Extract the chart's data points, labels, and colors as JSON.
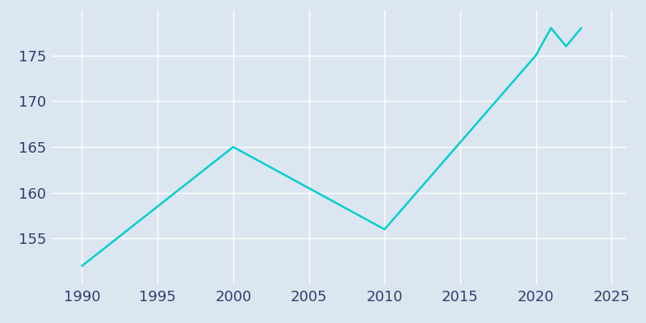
{
  "years": [
    1990,
    2000,
    2010,
    2020,
    2021,
    2022,
    2023
  ],
  "population": [
    152,
    165,
    156,
    175,
    178,
    176,
    178
  ],
  "line_color": "#00CED1",
  "background_color": "#dce6f0",
  "plot_background_color": "#dce6f0",
  "grid_color": "#ffffff",
  "xlim": [
    1988,
    2026
  ],
  "ylim": [
    150,
    180
  ],
  "xticks": [
    1990,
    1995,
    2000,
    2005,
    2010,
    2015,
    2020,
    2025
  ],
  "yticks": [
    155,
    160,
    165,
    170,
    175
  ],
  "tick_color": "#2e3f6e",
  "line_width": 1.8,
  "tick_fontsize": 13
}
